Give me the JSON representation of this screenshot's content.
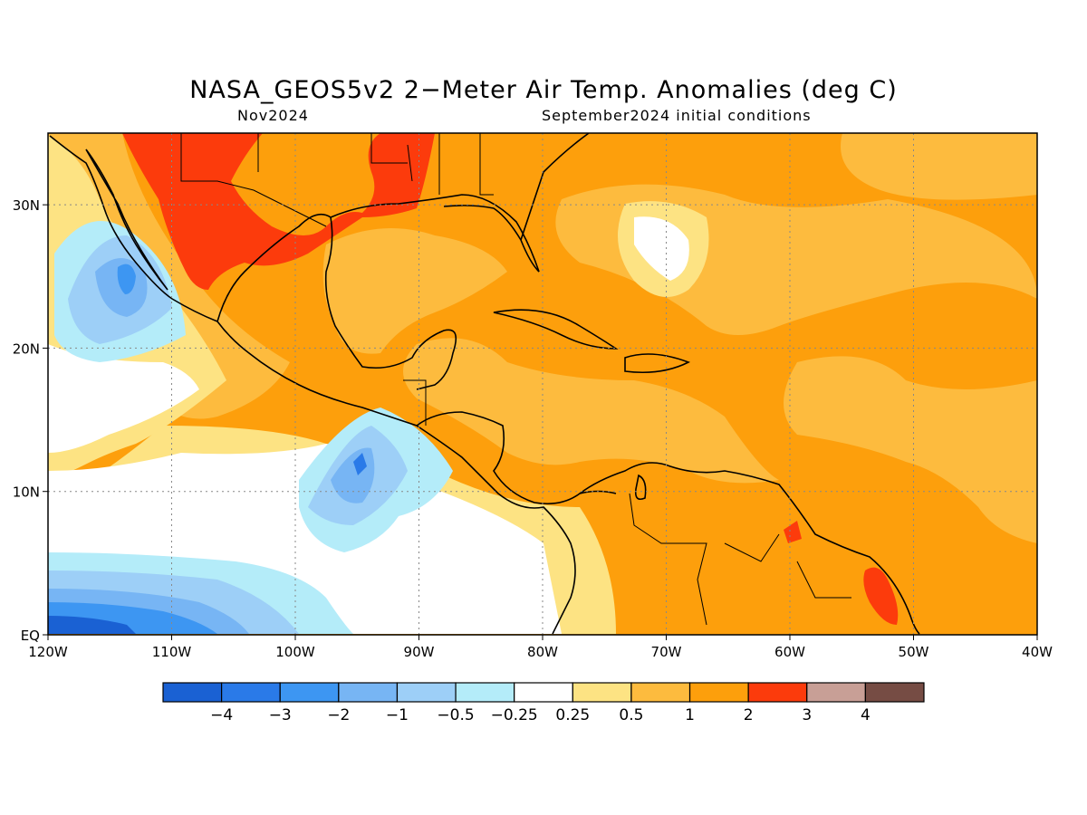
{
  "title": "NASA_GEOS5v2 2−Meter Air Temp. Anomalies (deg C)",
  "subtitle_left": "Nov2024",
  "subtitle_right": "September2024 initial conditions",
  "map": {
    "lon_range": [
      -120,
      -40
    ],
    "lat_range": [
      0,
      35
    ],
    "x_ticks": [
      {
        "value": -120,
        "label": "120W"
      },
      {
        "value": -110,
        "label": "110W"
      },
      {
        "value": -100,
        "label": "100W"
      },
      {
        "value": -90,
        "label": "90W"
      },
      {
        "value": -80,
        "label": "80W"
      },
      {
        "value": -70,
        "label": "70W"
      },
      {
        "value": -60,
        "label": "60W"
      },
      {
        "value": -50,
        "label": "50W"
      },
      {
        "value": -40,
        "label": "40W"
      }
    ],
    "y_ticks": [
      {
        "value": 0,
        "label": "EQ"
      },
      {
        "value": 10,
        "label": "10N"
      },
      {
        "value": 20,
        "label": "20N"
      },
      {
        "value": 30,
        "label": "30N"
      }
    ],
    "grid": "dotted"
  },
  "colorbar": {
    "colors": [
      "#1a61d3",
      "#2a7ae8",
      "#3d96f2",
      "#77b5f4",
      "#9dcff7",
      "#b4ecf9",
      "#ffffff",
      "#fde383",
      "#fdbb3e",
      "#fd9f0c",
      "#fc3b0c",
      "#c89f96",
      "#764c44"
    ],
    "labels": [
      "−4",
      "−3",
      "−2",
      "−1",
      "−0.5",
      "−0.25",
      "0.25",
      "0.5",
      "1",
      "2",
      "3",
      "4"
    ]
  },
  "palette": {
    "neg4": "#1a61d3",
    "neg3": "#2a7ae8",
    "neg2": "#3d96f2",
    "neg1": "#77b5f4",
    "neg05": "#9dcff7",
    "neg025": "#b4ecf9",
    "neutral": "#ffffff",
    "pos025": "#fde383",
    "pos05": "#fdbb3e",
    "pos1": "#fd9f0c",
    "pos2": "#fc3b0c"
  }
}
